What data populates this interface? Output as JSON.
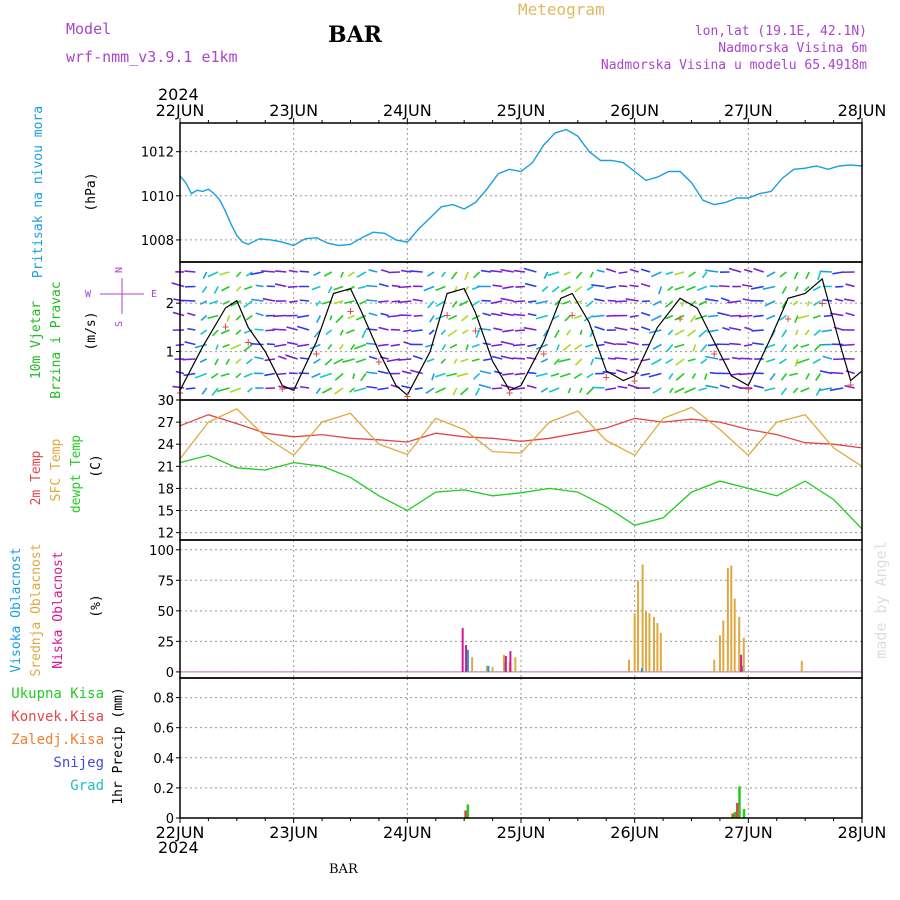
{
  "header": {
    "model_label": "Model",
    "model_name": "wrf-nmm_v3.9.1 e1km",
    "station": "BAR",
    "meteogram": "Meteogram",
    "lonlat": "lon,lat (19.1E, 42.1N)",
    "elevation": "Nadmorska Visina 6m",
    "elevation_model": "Nadmorska Visina u modelu 65.4918m",
    "footer_station": "BAR",
    "credit": "made by Angel"
  },
  "colors": {
    "pressure": "#1a9fe0",
    "temp2m": "#e04848",
    "sfc": "#e0a840",
    "dewpt": "#22cc22",
    "cloud_high": "#1a9fe0",
    "cloud_mid": "#e0a840",
    "cloud_low": "#d01890",
    "label_wind": "#22bb22",
    "label_magenta": "#aa44cc",
    "label_gold": "#e0b860",
    "credit": "#dddddd"
  },
  "chart_data": [
    {
      "type": "line",
      "name": "pressure",
      "x_ticks": [
        "22JUN",
        "23JUN",
        "24JUN",
        "25JUN",
        "26JUN",
        "27JUN",
        "28JUN"
      ],
      "year": "2024",
      "ylabel": [
        "Pritisak na nivou mora",
        "(hPa)"
      ],
      "ylim": [
        1007,
        1013.3
      ],
      "yticks": [
        1008,
        1010,
        1012
      ],
      "x_days": [
        0,
        0.05,
        0.1,
        0.15,
        0.2,
        0.25,
        0.3,
        0.35,
        0.4,
        0.45,
        0.5,
        0.55,
        0.6,
        0.7,
        0.8,
        0.9,
        1.0,
        1.1,
        1.2,
        1.3,
        1.4,
        1.5,
        1.6,
        1.7,
        1.8,
        1.9,
        2.0,
        2.1,
        2.2,
        2.3,
        2.4,
        2.5,
        2.6,
        2.7,
        2.8,
        2.9,
        3.0,
        3.1,
        3.2,
        3.3,
        3.4,
        3.5,
        3.6,
        3.7,
        3.8,
        3.9,
        4.0,
        4.1,
        4.2,
        4.3,
        4.4,
        4.5,
        4.6,
        4.7,
        4.8,
        4.9,
        5.0,
        5.1,
        5.2,
        5.3,
        5.4,
        5.5,
        5.6,
        5.7,
        5.8,
        5.9,
        6.0
      ],
      "values": [
        1010.9,
        1010.6,
        1010.1,
        1010.25,
        1010.2,
        1010.3,
        1010.1,
        1009.8,
        1009.3,
        1008.7,
        1008.2,
        1007.9,
        1007.8,
        1008.05,
        1008.0,
        1007.9,
        1007.75,
        1008.05,
        1008.1,
        1007.85,
        1007.75,
        1007.8,
        1008.1,
        1008.35,
        1008.3,
        1008.0,
        1007.9,
        1008.5,
        1009.0,
        1009.5,
        1009.6,
        1009.4,
        1009.7,
        1010.3,
        1011.0,
        1011.2,
        1011.1,
        1011.5,
        1012.3,
        1012.85,
        1013.0,
        1012.7,
        1012.0,
        1011.6,
        1011.6,
        1011.5,
        1011.1,
        1010.7,
        1010.85,
        1011.1,
        1011.1,
        1010.6,
        1009.8,
        1009.6,
        1009.7,
        1009.9,
        1009.9,
        1010.1,
        1010.2,
        1010.8,
        1011.2,
        1011.25,
        1011.35,
        1011.2,
        1011.35,
        1011.4,
        1011.35
      ]
    },
    {
      "type": "scatter",
      "name": "wind",
      "ylabel": [
        "10m Vjetar",
        "Brzina i Pravac",
        "(m/s)"
      ],
      "compass": [
        "N",
        "W",
        "E",
        "S"
      ],
      "ylim": [
        0,
        2.85
      ],
      "yticks": [
        0,
        1,
        2
      ],
      "speed_days": [
        0,
        0.2,
        0.4,
        0.5,
        0.6,
        0.75,
        0.9,
        1.0,
        1.2,
        1.35,
        1.5,
        1.6,
        1.75,
        1.9,
        2.0,
        2.2,
        2.35,
        2.5,
        2.6,
        2.75,
        2.9,
        3.0,
        3.2,
        3.35,
        3.45,
        3.6,
        3.75,
        3.9,
        4.0,
        4.2,
        4.4,
        4.55,
        4.7,
        4.85,
        5.0,
        5.2,
        5.35,
        5.5,
        5.65,
        5.8,
        5.9,
        6.0
      ],
      "speed_values": [
        0.2,
        1.1,
        1.9,
        2.05,
        1.5,
        1.0,
        0.3,
        0.2,
        1.2,
        2.2,
        2.3,
        1.8,
        1.0,
        0.3,
        0.1,
        1.0,
        2.2,
        2.3,
        1.8,
        0.8,
        0.2,
        0.3,
        1.2,
        2.1,
        2.2,
        1.6,
        0.6,
        0.4,
        0.5,
        1.5,
        2.1,
        1.9,
        1.2,
        0.5,
        0.3,
        1.3,
        2.1,
        2.2,
        2.5,
        1.2,
        0.4,
        0.6
      ]
    },
    {
      "type": "line",
      "name": "temperature",
      "ylabel": [
        "2m Temp",
        "SFC Temp",
        "dewpt Temp",
        "(C)"
      ],
      "ylim": [
        11,
        30
      ],
      "yticks": [
        12,
        15,
        18,
        21,
        24,
        27,
        30
      ],
      "x_days": [
        0,
        0.25,
        0.5,
        0.75,
        1.0,
        1.25,
        1.5,
        1.75,
        2.0,
        2.25,
        2.5,
        2.75,
        3.0,
        3.25,
        3.5,
        3.75,
        4.0,
        4.25,
        4.5,
        4.75,
        5.0,
        5.25,
        5.5,
        5.75,
        6.0
      ],
      "series": [
        {
          "key": "temp2m",
          "values": [
            26.5,
            28.0,
            26.8,
            25.5,
            25.0,
            25.3,
            24.8,
            24.6,
            24.3,
            25.5,
            25.0,
            24.8,
            24.4,
            24.8,
            25.5,
            26.2,
            27.5,
            27.0,
            27.4,
            27.0,
            26.0,
            25.3,
            24.2,
            24.0,
            23.5
          ]
        },
        {
          "key": "sfc",
          "values": [
            22.0,
            27.0,
            28.8,
            25.0,
            22.5,
            27.0,
            28.2,
            24.0,
            22.6,
            27.5,
            26.0,
            23.0,
            22.8,
            27.0,
            28.5,
            24.5,
            22.5,
            27.5,
            29.0,
            26.0,
            22.5,
            27.0,
            28.0,
            23.5,
            21.0
          ]
        },
        {
          "key": "dewpt",
          "values": [
            21.5,
            22.5,
            20.8,
            20.5,
            21.5,
            21.0,
            19.5,
            17.0,
            15.0,
            17.5,
            17.8,
            17.0,
            17.4,
            18.0,
            17.5,
            15.5,
            13.0,
            14.0,
            17.5,
            19.0,
            18.0,
            17.0,
            19.0,
            16.5,
            12.5
          ]
        }
      ]
    },
    {
      "type": "bar",
      "name": "cloud",
      "ylabel": [
        "Visoka Oblacnost",
        "Srednja Oblacnost",
        "Niska Oblacnost",
        "(%)"
      ],
      "ylim": [
        -5,
        108
      ],
      "yticks": [
        0,
        25,
        50,
        75,
        100
      ],
      "high": {
        "x_days": [
          2.52,
          2.7,
          2.85,
          4.05,
          4.93
        ],
        "values": [
          18,
          5,
          8,
          3,
          5
        ]
      },
      "mid": {
        "x_days": [
          2.57,
          2.7,
          2.75,
          2.85,
          2.9,
          2.95,
          3.95,
          4.0,
          4.03,
          4.07,
          4.1,
          4.13,
          4.17,
          4.2,
          4.23,
          4.7,
          4.75,
          4.78,
          4.82,
          4.85,
          4.88,
          4.92,
          4.96,
          5.47
        ],
        "values": [
          12,
          5,
          4,
          14,
          8,
          12,
          10,
          48,
          75,
          88,
          50,
          48,
          45,
          40,
          32,
          10,
          30,
          42,
          85,
          87,
          60,
          45,
          28,
          9
        ]
      },
      "low": {
        "x_days": [
          2.5,
          2.53,
          2.88,
          2.92,
          4.95
        ],
        "values": [
          36,
          22,
          13,
          17,
          14
        ]
      }
    },
    {
      "type": "bar",
      "name": "precip",
      "ylabel": [
        "1hr Precip (mm)"
      ],
      "legend": [
        "Ukupna Kisa",
        "Konvek.Kisa",
        "Zaledj.Kisa",
        "Snijeg",
        "Grad"
      ],
      "legend_colors": [
        "#22cc22",
        "#e04848",
        "#f08030",
        "#4848e0",
        "#20c0c0"
      ],
      "ylim": [
        0,
        0.93
      ],
      "yticks": [
        0,
        0.2,
        0.4,
        0.6,
        0.8
      ],
      "total": {
        "x_days": [
          2.53,
          4.88,
          4.92,
          4.96
        ],
        "values": [
          0.09,
          0.04,
          0.21,
          0.06
        ]
      },
      "convective": {
        "x_days": [
          2.51,
          4.86,
          4.9
        ],
        "values": [
          0.05,
          0.03,
          0.1
        ]
      }
    }
  ]
}
